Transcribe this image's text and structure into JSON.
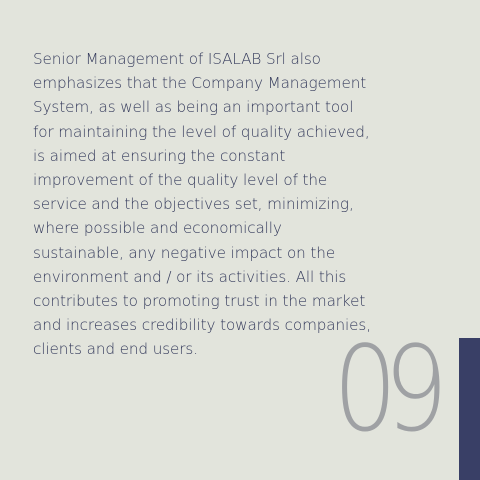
{
  "content": {
    "paragraph": "Senior Management of ISALAB Srl also emphasizes that the Company Management System, as well as being an important tool for maintaining the level of quality achieved, is aimed at ensuring the constant improvement of the quality level of the service and the objectives set, minimizing, where possible and economically sustainable, any negative impact on the environment and / or its activities. All this contributes to promoting trust in the market and increases credibility towards companies, clients and end users."
  },
  "page": {
    "number": "09"
  },
  "colors": {
    "background": "#e2e4dc",
    "text": "#353b5c",
    "page_number": "#9fa1a4",
    "accent": "#393f66"
  }
}
